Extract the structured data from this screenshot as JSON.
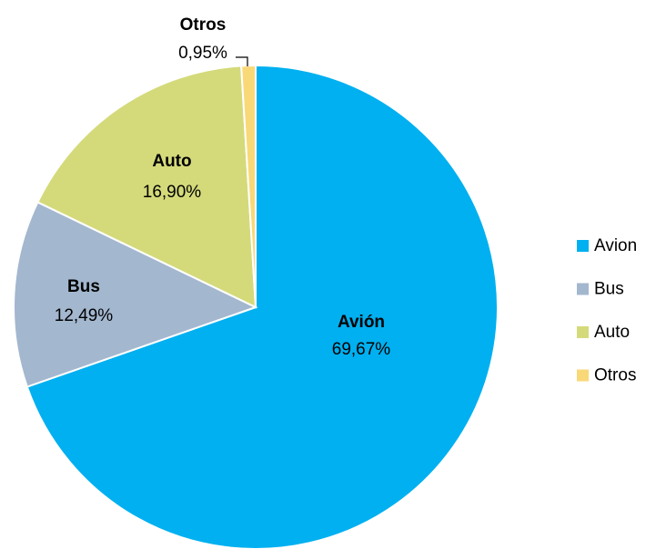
{
  "chart_data": {
    "type": "pie",
    "categories": [
      "Avion",
      "Bus",
      "Auto",
      "Otros"
    ],
    "label_names": [
      "Avión",
      "Bus",
      "Auto",
      "Otros"
    ],
    "values": [
      69.67,
      12.49,
      16.9,
      0.95
    ],
    "value_labels": [
      "69,67%",
      "12,49%",
      "16,90%",
      "0,95%"
    ],
    "colors": [
      "#00b0f0",
      "#a3b7cf",
      "#d4da7a",
      "#f9d878"
    ],
    "legend": "right"
  }
}
